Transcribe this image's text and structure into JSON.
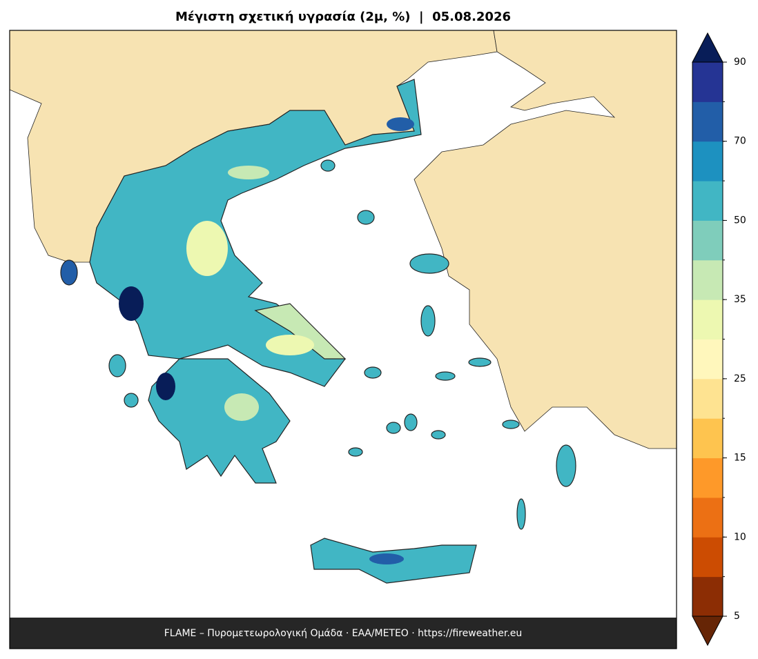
{
  "title": "Μέγιστη σχετική υγρασία (2μ, %)  |  05.08.2026",
  "footer": "FLAME – Πυρομετεωρολογική Ομάδα · ΕΑΑ/METEO · https://fireweather.eu",
  "colorbar": {
    "levels": [
      5,
      7.5,
      10,
      12.5,
      15,
      20,
      25,
      30,
      35,
      42.5,
      50,
      60,
      70,
      80,
      90
    ],
    "colors": [
      "#8c2d04",
      "#cc4c02",
      "#ec7014",
      "#fe9929",
      "#fec44f",
      "#fee391",
      "#fff7bc",
      "#edf8b1",
      "#c7e9b4",
      "#7fcdbb",
      "#41b6c4",
      "#1d91c0",
      "#225ea8",
      "#253494"
    ],
    "extend_colors": [
      "#662506",
      "#081d58"
    ],
    "ticks": [
      5,
      10,
      15,
      25,
      35,
      50,
      70,
      90
    ]
  }
}
